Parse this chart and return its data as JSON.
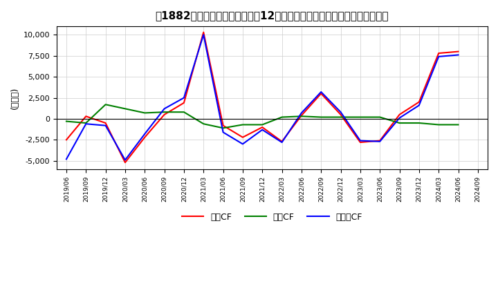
{
  "title": "[ᢂ]　キャッシュフローの12か月移動合計の対前年同期増減額の推移",
  "title_bracket": "　1882　",
  "ylabel": "(百万円)",
  "ylim": [
    -6000,
    11000
  ],
  "yticks": [
    -5000,
    -2500,
    0,
    2500,
    5000,
    7500,
    10000
  ],
  "dates": [
    "2019/06",
    "2019/09",
    "2019/12",
    "2020/03",
    "2020/06",
    "2020/09",
    "2020/12",
    "2021/03",
    "2021/06",
    "2021/09",
    "2021/12",
    "2022/03",
    "2022/06",
    "2022/09",
    "2022/12",
    "2023/03",
    "2023/06",
    "2023/09",
    "2023/12",
    "2024/03",
    "2024/06",
    "2024/09"
  ],
  "eigyo_cf": [
    -2500,
    300,
    -500,
    -5200,
    -2200,
    500,
    1900,
    10300,
    -800,
    -2200,
    -1000,
    -2700,
    400,
    3000,
    500,
    -2800,
    -2600,
    500,
    2000,
    7800,
    8000,
    null
  ],
  "toshi_cf": [
    -300,
    -500,
    1700,
    1200,
    700,
    800,
    800,
    -600,
    -1100,
    -700,
    -700,
    200,
    300,
    200,
    200,
    200,
    200,
    -500,
    -500,
    -700,
    -700,
    null
  ],
  "free_cf": [
    -4800,
    -600,
    -800,
    -4900,
    -1800,
    1200,
    2500,
    10000,
    -1600,
    -3000,
    -1300,
    -2800,
    700,
    3200,
    800,
    -2600,
    -2700,
    100,
    1600,
    7400,
    7600,
    null
  ],
  "eigyo_color": "#ff0000",
  "toshi_color": "#008000",
  "free_color": "#0000ff",
  "background_color": "#ffffff",
  "grid_color": "#cccccc",
  "legend_label_eigyo": "営業CF",
  "legend_label_toshi": "投資CF",
  "legend_label_free": "フリーCF"
}
